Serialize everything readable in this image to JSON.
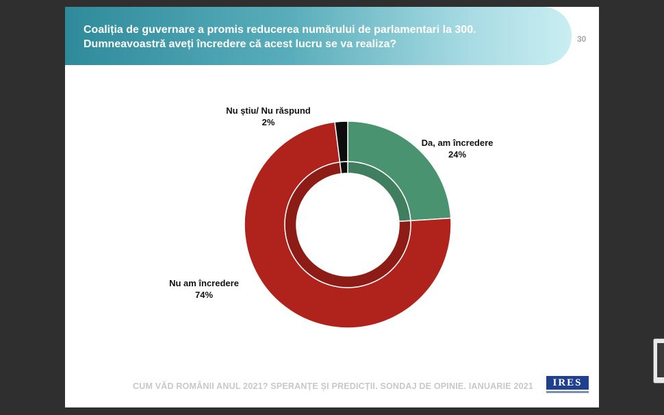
{
  "slide": {
    "title_line1": "Coaliția de guvernare a promis reducerea numărului de parlamentari la 300.",
    "title_line2": "Dumneavoastră aveți încredere că acest lucru se va realiza?",
    "page_number": "30",
    "footer": "CUM VĂD ROMÂNII ANUL 2021? SPERANȚE ȘI PREDICȚII. SONDAJ DE OPINIE. IANUARIE 2021",
    "logo_text": "IRES"
  },
  "chart_data": {
    "type": "pie",
    "donut": true,
    "categories": [
      "Da, am încredere",
      "Nu am încredere",
      "Nu știu/ Nu răspund"
    ],
    "values": [
      24,
      74,
      2
    ],
    "value_labels": [
      "24%",
      "74%",
      "2%"
    ],
    "colors": [
      "#4a9370",
      "#b0231c",
      "#0d0d0d"
    ],
    "inner_shade_colors": [
      "#3f7f60",
      "#8e1c16",
      "#0d0d0d"
    ]
  }
}
